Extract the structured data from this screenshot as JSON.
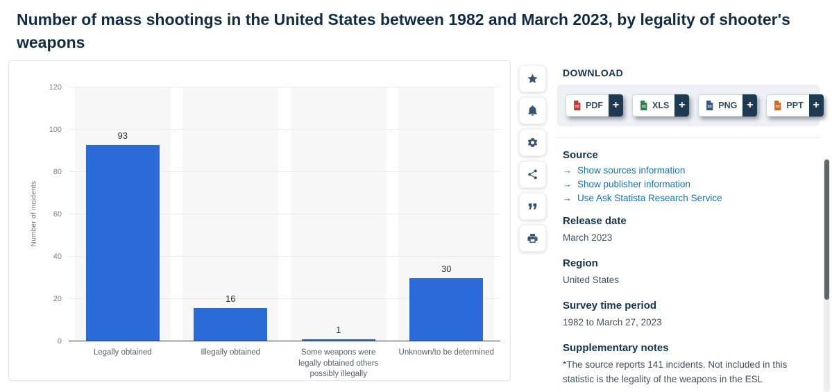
{
  "page": {
    "title": "Number of mass shootings in the United States between 1982 and March 2023, by legality of shooter's weapons"
  },
  "chart_data": {
    "type": "bar",
    "title": "Number of mass shootings in the United States between 1982 and March 2023, by legality of shooter's weapons",
    "categories": [
      "Legally obtained",
      "Illegally obtained",
      "Some weapons were legally obtained others possibly illegally",
      "Unknown/to be determined"
    ],
    "values": [
      93,
      16,
      1,
      30
    ],
    "ylabel": "Number of incidents",
    "xlabel": "",
    "ylim": [
      0,
      120
    ],
    "yticks": [
      0,
      20,
      40,
      60,
      80,
      100,
      120
    ],
    "grid": true,
    "legend": false,
    "bar_color": "#2b6bd8",
    "band_color": "#f7f7f7"
  },
  "toolbar": {
    "icons": [
      {
        "name": "star-icon",
        "label": "favorite"
      },
      {
        "name": "bell-icon",
        "label": "notifications"
      },
      {
        "name": "gear-icon",
        "label": "settings"
      },
      {
        "name": "share-icon",
        "label": "share"
      },
      {
        "name": "quote-icon",
        "label": "cite"
      },
      {
        "name": "print-icon",
        "label": "print"
      }
    ]
  },
  "download": {
    "heading": "DOWNLOAD",
    "buttons": [
      {
        "label": "PDF",
        "plus": "+",
        "icon_color": "#c6342c"
      },
      {
        "label": "XLS",
        "plus": "+",
        "icon_color": "#2d7d46"
      },
      {
        "label": "PNG",
        "plus": "+",
        "icon_color": "#33567d"
      },
      {
        "label": "PPT",
        "plus": "+",
        "icon_color": "#d2691e"
      }
    ]
  },
  "details": {
    "source": {
      "heading": "Source",
      "links": [
        "Show sources information",
        "Show publisher information",
        "Use Ask Statista Research Service"
      ]
    },
    "release_date": {
      "heading": "Release date",
      "value": "March 2023"
    },
    "region": {
      "heading": "Region",
      "value": "United States"
    },
    "survey_period": {
      "heading": "Survey time period",
      "value": "1982 to March 27, 2023"
    },
    "notes": {
      "heading": "Supplementary notes",
      "value": "*The source reports 141 incidents. Not included in this statistic is the legality of the weapons in the ESL"
    }
  },
  "colors": {
    "accent_blue": "#2b6bd8",
    "link_blue": "#1173b4",
    "heading_navy": "#15344c",
    "plus_navy": "#1e3a53"
  }
}
